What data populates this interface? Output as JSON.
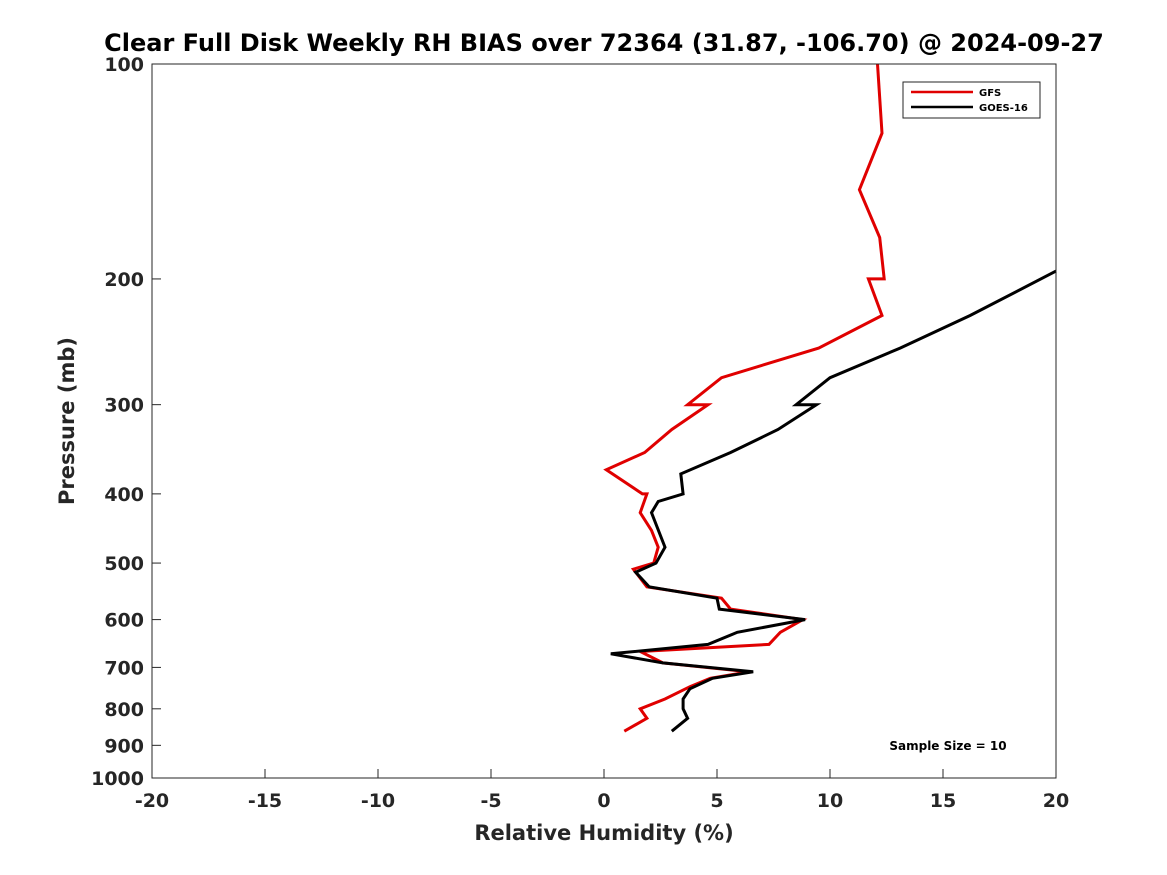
{
  "chart_data": {
    "type": "line",
    "title": "Clear Full Disk Weekly RH BIAS over 72364 (31.87, -106.70) @ 2024-09-27",
    "xlabel": "Relative Humidity (%)",
    "ylabel": "Pressure (mb)",
    "xlim": [
      -20,
      20
    ],
    "ylim": [
      100,
      1000
    ],
    "y_scale": "log",
    "y_reversed": true,
    "grid": false,
    "x_ticks": [
      -20,
      -15,
      -10,
      -5,
      0,
      5,
      10,
      15,
      20
    ],
    "x_tick_labels": [
      "-20",
      "-15",
      "-10",
      "-5",
      "0",
      "5",
      "10",
      "15",
      "20"
    ],
    "y_ticks": [
      100,
      200,
      300,
      400,
      500,
      600,
      700,
      800,
      900,
      1000
    ],
    "y_tick_labels": [
      "100",
      "200",
      "300",
      "400",
      "500",
      "600",
      "700",
      "800",
      "900",
      "1000"
    ],
    "legend_position": "top-right",
    "annotation": "Sample Size = 10",
    "series": [
      {
        "name": "GFS",
        "color": "#e00000",
        "points": [
          [
            12.1,
            100
          ],
          [
            12.3,
            125
          ],
          [
            11.3,
            150
          ],
          [
            12.2,
            175
          ],
          [
            12.4,
            200
          ],
          [
            11.7,
            200
          ],
          [
            12.3,
            225
          ],
          [
            9.5,
            250
          ],
          [
            5.2,
            275
          ],
          [
            3.7,
            300
          ],
          [
            4.6,
            300
          ],
          [
            3.0,
            325
          ],
          [
            1.8,
            350
          ],
          [
            0.1,
            370
          ],
          [
            1.7,
            400
          ],
          [
            1.9,
            400
          ],
          [
            1.6,
            425
          ],
          [
            2.1,
            450
          ],
          [
            2.4,
            475
          ],
          [
            2.2,
            500
          ],
          [
            1.3,
            510
          ],
          [
            1.9,
            540
          ],
          [
            5.2,
            560
          ],
          [
            5.6,
            580
          ],
          [
            8.8,
            600
          ],
          [
            7.8,
            625
          ],
          [
            7.3,
            650
          ],
          [
            1.6,
            665
          ],
          [
            2.6,
            690
          ],
          [
            6.4,
            710
          ],
          [
            4.7,
            725
          ],
          [
            3.8,
            745
          ],
          [
            2.7,
            775
          ],
          [
            1.6,
            800
          ],
          [
            1.9,
            825
          ],
          [
            0.9,
            860
          ]
        ]
      },
      {
        "name": "GOES-16",
        "color": "#000000",
        "points": [
          [
            20.0,
            195
          ],
          [
            16.2,
            225
          ],
          [
            13.1,
            250
          ],
          [
            10.0,
            275
          ],
          [
            8.5,
            300
          ],
          [
            9.4,
            300
          ],
          [
            7.7,
            325
          ],
          [
            5.6,
            350
          ],
          [
            3.4,
            375
          ],
          [
            3.5,
            400
          ],
          [
            2.4,
            410
          ],
          [
            2.1,
            425
          ],
          [
            2.7,
            475
          ],
          [
            2.3,
            500
          ],
          [
            1.4,
            515
          ],
          [
            2.0,
            540
          ],
          [
            5.0,
            560
          ],
          [
            5.1,
            580
          ],
          [
            8.9,
            600
          ],
          [
            5.9,
            625
          ],
          [
            4.6,
            650
          ],
          [
            0.3,
            670
          ],
          [
            2.6,
            690
          ],
          [
            6.6,
            710
          ],
          [
            4.8,
            725
          ],
          [
            3.8,
            750
          ],
          [
            3.5,
            775
          ],
          [
            3.5,
            800
          ],
          [
            3.7,
            825
          ],
          [
            3.0,
            860
          ]
        ]
      }
    ]
  }
}
